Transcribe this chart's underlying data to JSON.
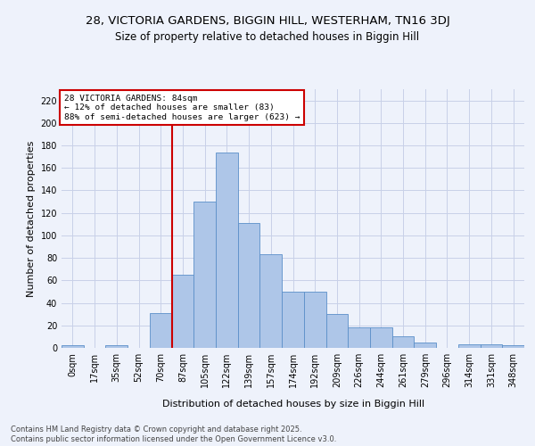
{
  "title1": "28, VICTORIA GARDENS, BIGGIN HILL, WESTERHAM, TN16 3DJ",
  "title2": "Size of property relative to detached houses in Biggin Hill",
  "xlabel": "Distribution of detached houses by size in Biggin Hill",
  "ylabel": "Number of detached properties",
  "bin_labels": [
    "0sqm",
    "17sqm",
    "35sqm",
    "52sqm",
    "70sqm",
    "87sqm",
    "105sqm",
    "122sqm",
    "139sqm",
    "157sqm",
    "174sqm",
    "192sqm",
    "209sqm",
    "226sqm",
    "244sqm",
    "261sqm",
    "279sqm",
    "296sqm",
    "314sqm",
    "331sqm",
    "348sqm"
  ],
  "bar_values": [
    2,
    0,
    2,
    0,
    31,
    65,
    130,
    174,
    111,
    83,
    50,
    50,
    30,
    18,
    18,
    10,
    5,
    0,
    3,
    3,
    2
  ],
  "bar_color": "#aec6e8",
  "bar_edge_color": "#5b8fc9",
  "property_line_idx": 5,
  "ylim": [
    0,
    230
  ],
  "yticks": [
    0,
    20,
    40,
    60,
    80,
    100,
    120,
    140,
    160,
    180,
    200,
    220
  ],
  "annotation_title": "28 VICTORIA GARDENS: 84sqm",
  "annotation_line1": "← 12% of detached houses are smaller (83)",
  "annotation_line2": "88% of semi-detached houses are larger (623) →",
  "annotation_box_color": "#ffffff",
  "annotation_box_edge_color": "#cc0000",
  "red_line_color": "#cc0000",
  "footer_line1": "Contains HM Land Registry data © Crown copyright and database right 2025.",
  "footer_line2": "Contains public sector information licensed under the Open Government Licence v3.0.",
  "bg_color": "#eef2fb",
  "plot_bg_color": "#eef2fb",
  "grid_color": "#c8d0e8",
  "title_fontsize": 9.5,
  "subtitle_fontsize": 8.5,
  "axis_label_fontsize": 8,
  "tick_fontsize": 7,
  "annotation_fontsize": 6.8,
  "footer_fontsize": 6
}
